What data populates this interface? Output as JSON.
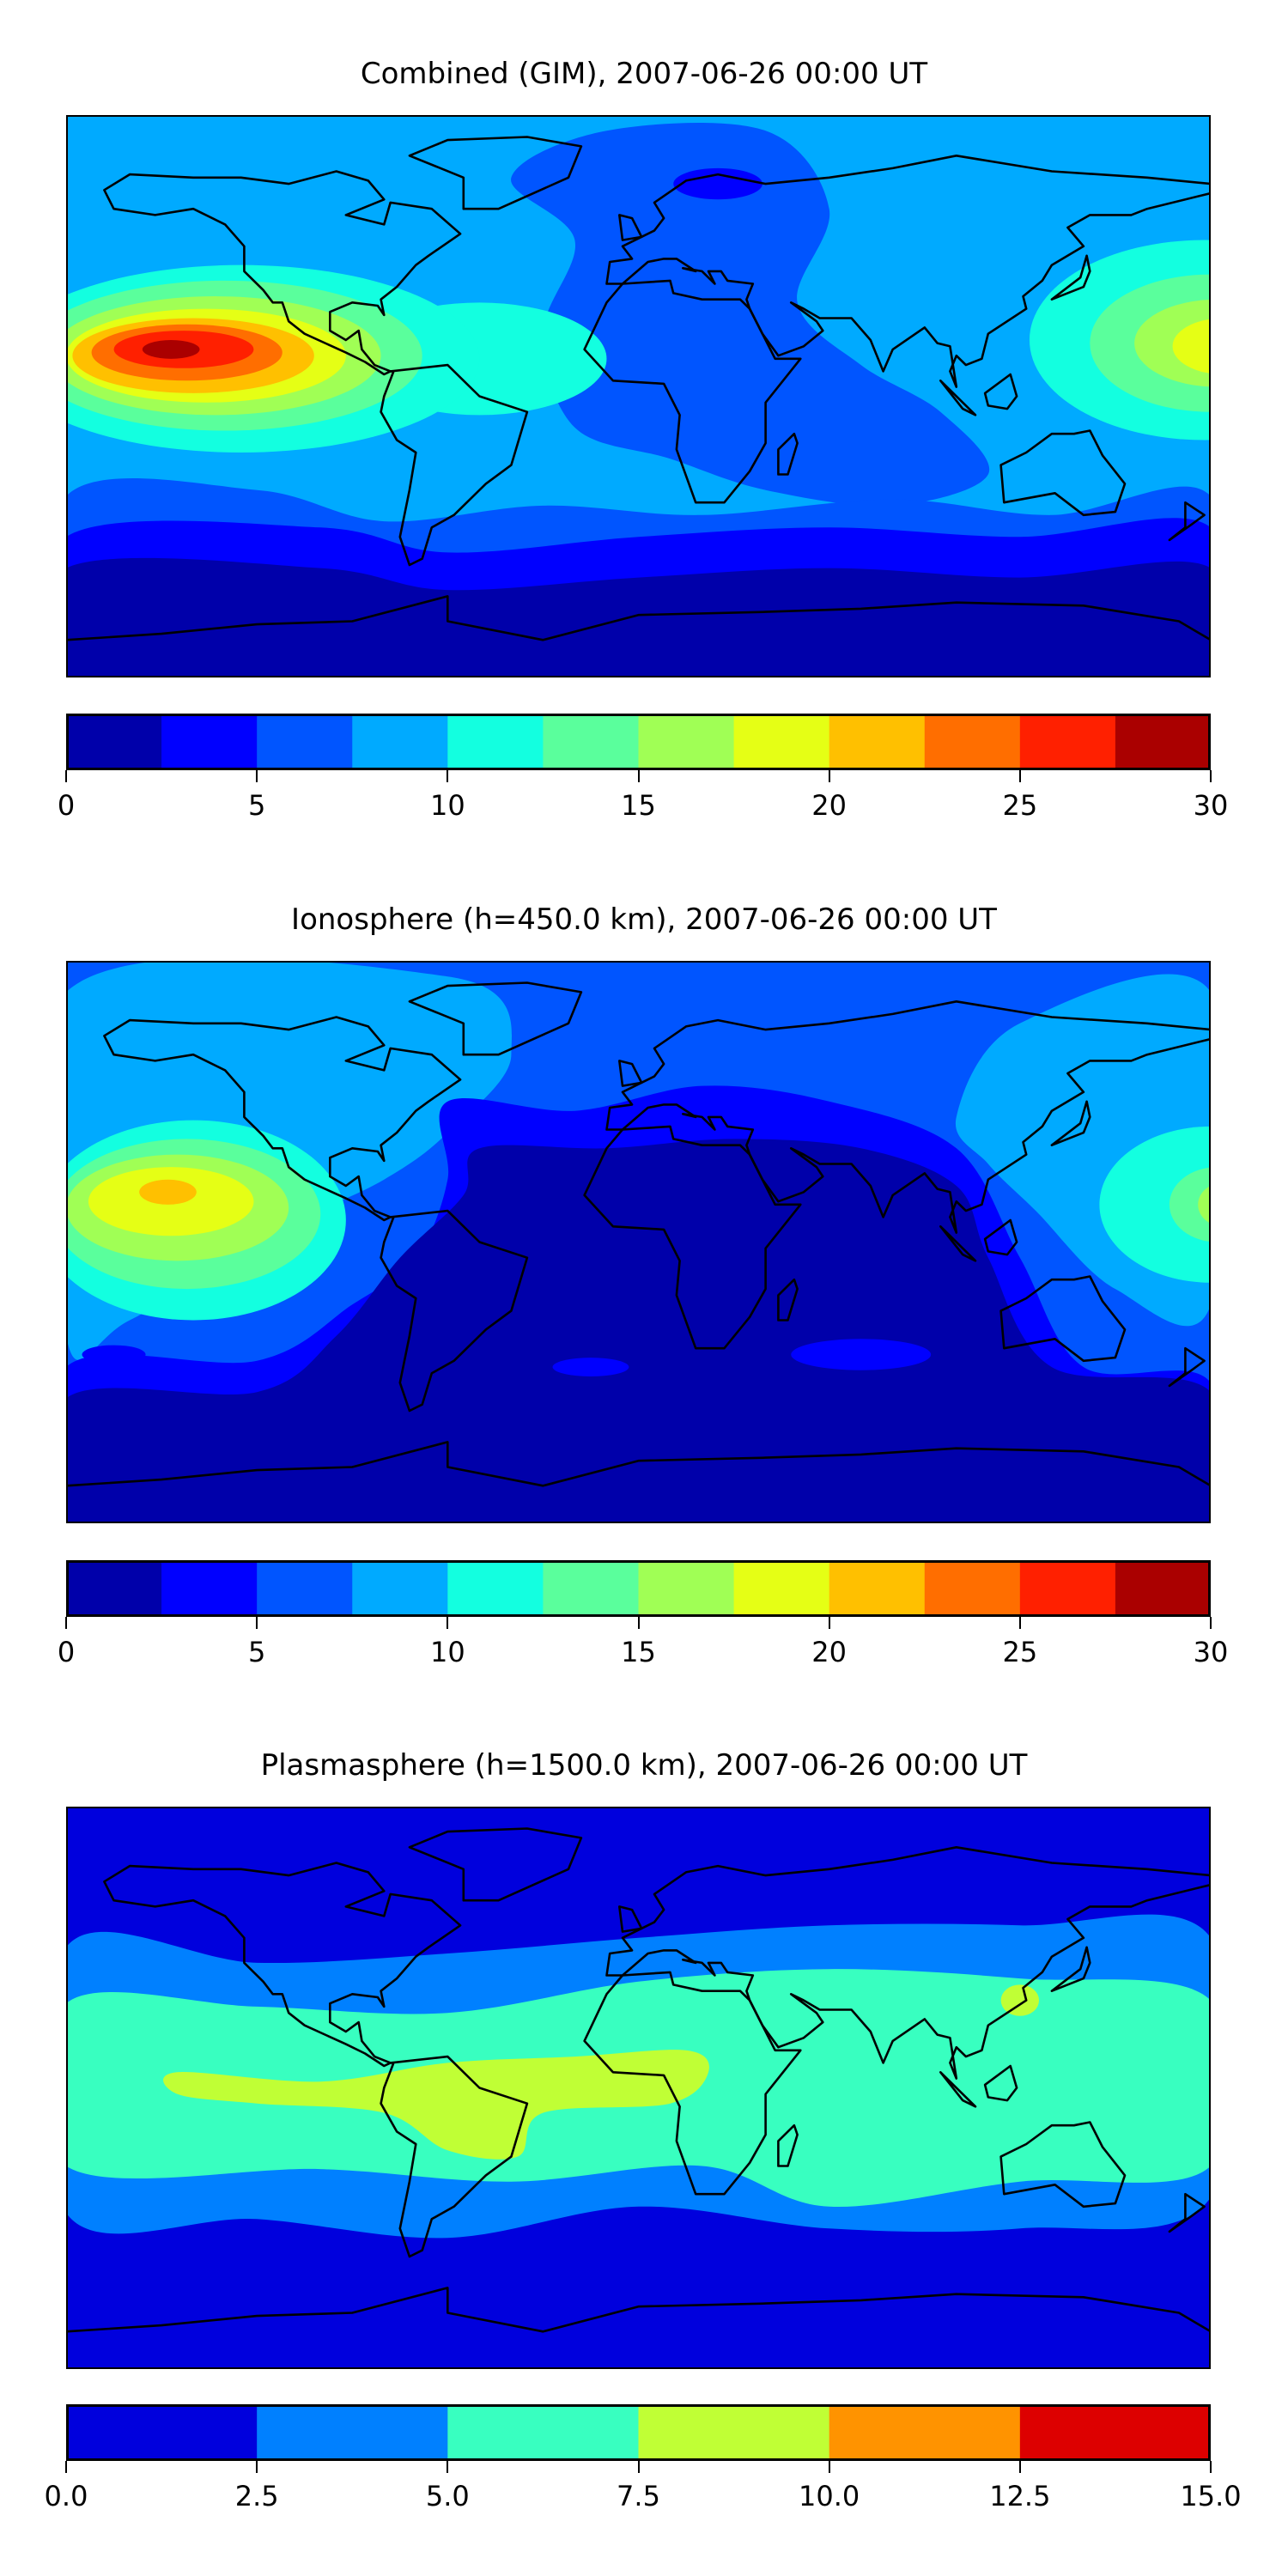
{
  "chart_data": [
    {
      "type": "heatmap",
      "subtype": "filled-contour world map",
      "title": "Combined (GIM), 2007-06-26 00:00 UT",
      "colorbar": {
        "levels": [
          0,
          2.5,
          5,
          7.5,
          10,
          12.5,
          15,
          17.5,
          20,
          22.5,
          25,
          27.5,
          30
        ],
        "colors": [
          "#0000aa",
          "#0000ff",
          "#0055ff",
          "#00aaff",
          "#13ffe0",
          "#5aff9c",
          "#a0ff55",
          "#e5ff15",
          "#ffc000",
          "#ff6e00",
          "#ff2000",
          "#aa0000"
        ],
        "ticks": [
          0,
          5,
          10,
          15,
          20,
          25,
          30
        ],
        "tick_labels": [
          "0",
          "5",
          "10",
          "15",
          "20",
          "25",
          "30"
        ],
        "range": [
          0,
          30
        ]
      }
    },
    {
      "type": "heatmap",
      "subtype": "filled-contour world map",
      "title": "Ionosphere  (h=450.0 km), 2007-06-26 00:00 UT",
      "colorbar": {
        "levels": [
          0,
          2.5,
          5,
          7.5,
          10,
          12.5,
          15,
          17.5,
          20,
          22.5,
          25,
          27.5,
          30
        ],
        "colors": [
          "#0000aa",
          "#0000ff",
          "#0055ff",
          "#00aaff",
          "#13ffe0",
          "#5aff9c",
          "#a0ff55",
          "#e5ff15",
          "#ffc000",
          "#ff6e00",
          "#ff2000",
          "#aa0000"
        ],
        "ticks": [
          0,
          5,
          10,
          15,
          20,
          25,
          30
        ],
        "tick_labels": [
          "0",
          "5",
          "10",
          "15",
          "20",
          "25",
          "30"
        ],
        "range": [
          0,
          30
        ]
      }
    },
    {
      "type": "heatmap",
      "subtype": "filled-contour world map",
      "title": "Plasmasphere (h=1500.0 km), 2007-06-26 00:00 UT",
      "colorbar": {
        "levels": [
          0,
          2.5,
          5,
          7.5,
          10,
          12.5,
          15
        ],
        "colors": [
          "#0000dd",
          "#0080ff",
          "#38ffc0",
          "#c0ff35",
          "#ff9300",
          "#dd0000"
        ],
        "ticks": [
          0,
          2.5,
          5,
          7.5,
          10,
          12.5,
          15
        ],
        "tick_labels": [
          "0.0",
          "2.5",
          "5.0",
          "7.5",
          "10.0",
          "12.5",
          "15.0"
        ],
        "range": [
          0,
          15
        ]
      }
    }
  ]
}
